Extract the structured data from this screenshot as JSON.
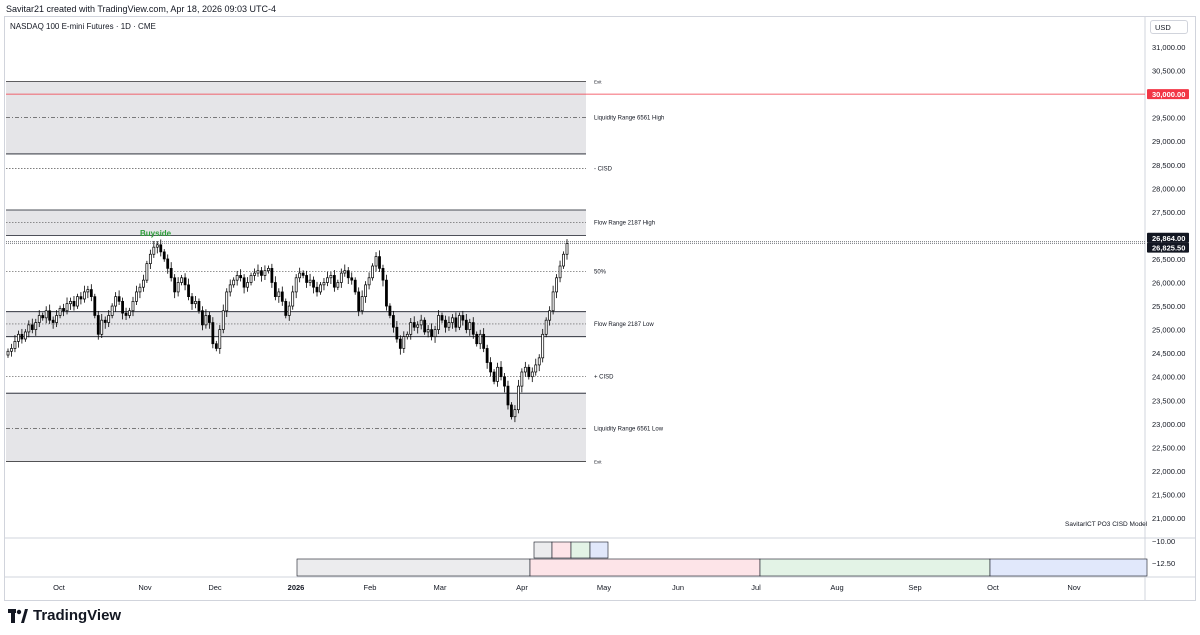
{
  "header": {
    "caption": "Savitar21 created with TradingView.com, Apr 18, 2026 09:03 UTC-4",
    "symbol": "NASDAQ 100 E-mini Futures · 1D · CME"
  },
  "currency_button": "USD",
  "watermark": "SavitarICT PO3 CISD Model",
  "brand": "TradingView",
  "colors": {
    "up_candle": "#ffffff",
    "down_candle": "#000000",
    "zone_fill": "#e5e5e8",
    "target_line": "#f23645",
    "buyside_text": "#2e9e3a"
  },
  "chart_data": {
    "type": "candlestick",
    "price_axis": {
      "ticks": [
        "31,000.00",
        "30,500.00",
        "29,500.00",
        "29,000.00",
        "28,500.00",
        "28,000.00",
        "27,500.00",
        "26,500.00",
        "26,000.00",
        "25,500.00",
        "25,000.00",
        "24,500.00",
        "24,000.00",
        "23,500.00",
        "23,000.00",
        "22,500.00",
        "22,000.00",
        "21,500.00",
        "21,000.00"
      ],
      "ylim": [
        20900,
        31350
      ]
    },
    "time_axis": {
      "labels": [
        "Oct",
        "Nov",
        "Dec",
        "2026",
        "Feb",
        "Mar",
        "Apr",
        "May",
        "Jun",
        "Jul",
        "Aug",
        "Sep",
        "Oct",
        "Nov"
      ]
    },
    "price_tags": [
      {
        "price": 30000,
        "label": "30,000.00",
        "style": "red"
      },
      {
        "price": 26864,
        "label": "26,864.00",
        "style": "dark"
      },
      {
        "price": 26825.5,
        "label": "26,825.50",
        "style": "dark"
      }
    ],
    "zones": [
      {
        "name": "Liquidity Range 6561 High",
        "top": 30270,
        "bottom": 28730
      },
      {
        "name": "Flow Range 2187 High",
        "top": 27540,
        "bottom": 27000
      },
      {
        "name": "Flow Range 2187 Low",
        "top": 25380,
        "bottom": 24850
      },
      {
        "name": "Liquidity Range 6561 Low",
        "top": 23650,
        "bottom": 22200
      }
    ],
    "levels": [
      {
        "label": "Exit",
        "price": 30270,
        "style": "solid"
      },
      {
        "label": "Liquidity Range 6561 High",
        "price": 29500,
        "style": "dashdot"
      },
      {
        "label": "- CISD",
        "price": 28420,
        "style": "dotted"
      },
      {
        "label": "Flow Range 2187 High",
        "price": 27270,
        "style": "dotted"
      },
      {
        "label": "50%",
        "price": 26230,
        "style": "dotted"
      },
      {
        "label": "Flow Range 2187 Low",
        "price": 25120,
        "style": "dotted"
      },
      {
        "label": "+ CISD",
        "price": 24000,
        "style": "dotted"
      },
      {
        "label": "Liquidity Range 6561 Low",
        "price": 22900,
        "style": "dashdot"
      },
      {
        "label": "Exit",
        "price": 22200,
        "style": "solid"
      }
    ],
    "buyside": {
      "label": "Buyside",
      "price": 26864
    },
    "closes": [
      24540,
      24600,
      24750,
      24900,
      24800,
      24950,
      25100,
      25000,
      25150,
      25300,
      25250,
      25400,
      25200,
      25150,
      25300,
      25450,
      25400,
      25550,
      25600,
      25500,
      25700,
      25650,
      25800,
      25850,
      25700,
      25300,
      24900,
      25200,
      25150,
      25300,
      25500,
      25700,
      25600,
      25350,
      25300,
      25400,
      25600,
      25800,
      25900,
      26050,
      26400,
      26600,
      26750,
      26800,
      26650,
      26500,
      26300,
      26100,
      25800,
      26000,
      26100,
      25950,
      25700,
      25550,
      25600,
      25400,
      25100,
      25300,
      25150,
      24700,
      24600,
      25000,
      25400,
      25800,
      25950,
      26050,
      26150,
      26100,
      25900,
      26000,
      26150,
      26200,
      26250,
      26150,
      26250,
      26300,
      26000,
      25700,
      25800,
      25600,
      25300,
      25500,
      25800,
      26100,
      26200,
      26150,
      26000,
      26050,
      25900,
      25800,
      25950,
      26000,
      26100,
      26150,
      25900,
      26000,
      26200,
      26250,
      26100,
      26050,
      25800,
      25400,
      25700,
      25950,
      26100,
      26350,
      26550,
      26300,
      26050,
      25500,
      25300,
      25050,
      24800,
      24600,
      24850,
      24900,
      25150,
      25050,
      25100,
      25200,
      24950,
      25000,
      24850,
      25000,
      25300,
      25200,
      25050,
      25150,
      25250,
      25050,
      25300,
      25200,
      25000,
      25150,
      24900,
      24700,
      24900,
      24600,
      24300,
      24100,
      23900,
      24200,
      24000,
      23800,
      23400,
      23150,
      23300,
      23800,
      24100,
      24200,
      24000,
      24100,
      24250,
      24400,
      24900,
      25200,
      25400,
      25800,
      26100,
      26350,
      26600,
      26825.5
    ]
  },
  "subpane": {
    "axis_labels": [
      "−10.00",
      "−12.50"
    ],
    "blocks": [
      {
        "name": "block-q1",
        "color": "#ececee"
      },
      {
        "name": "block-q2",
        "color": "#fde4e8"
      },
      {
        "name": "block-q3",
        "color": "#e3f3e6"
      },
      {
        "name": "block-q4",
        "color": "#e1e8fb"
      }
    ]
  }
}
